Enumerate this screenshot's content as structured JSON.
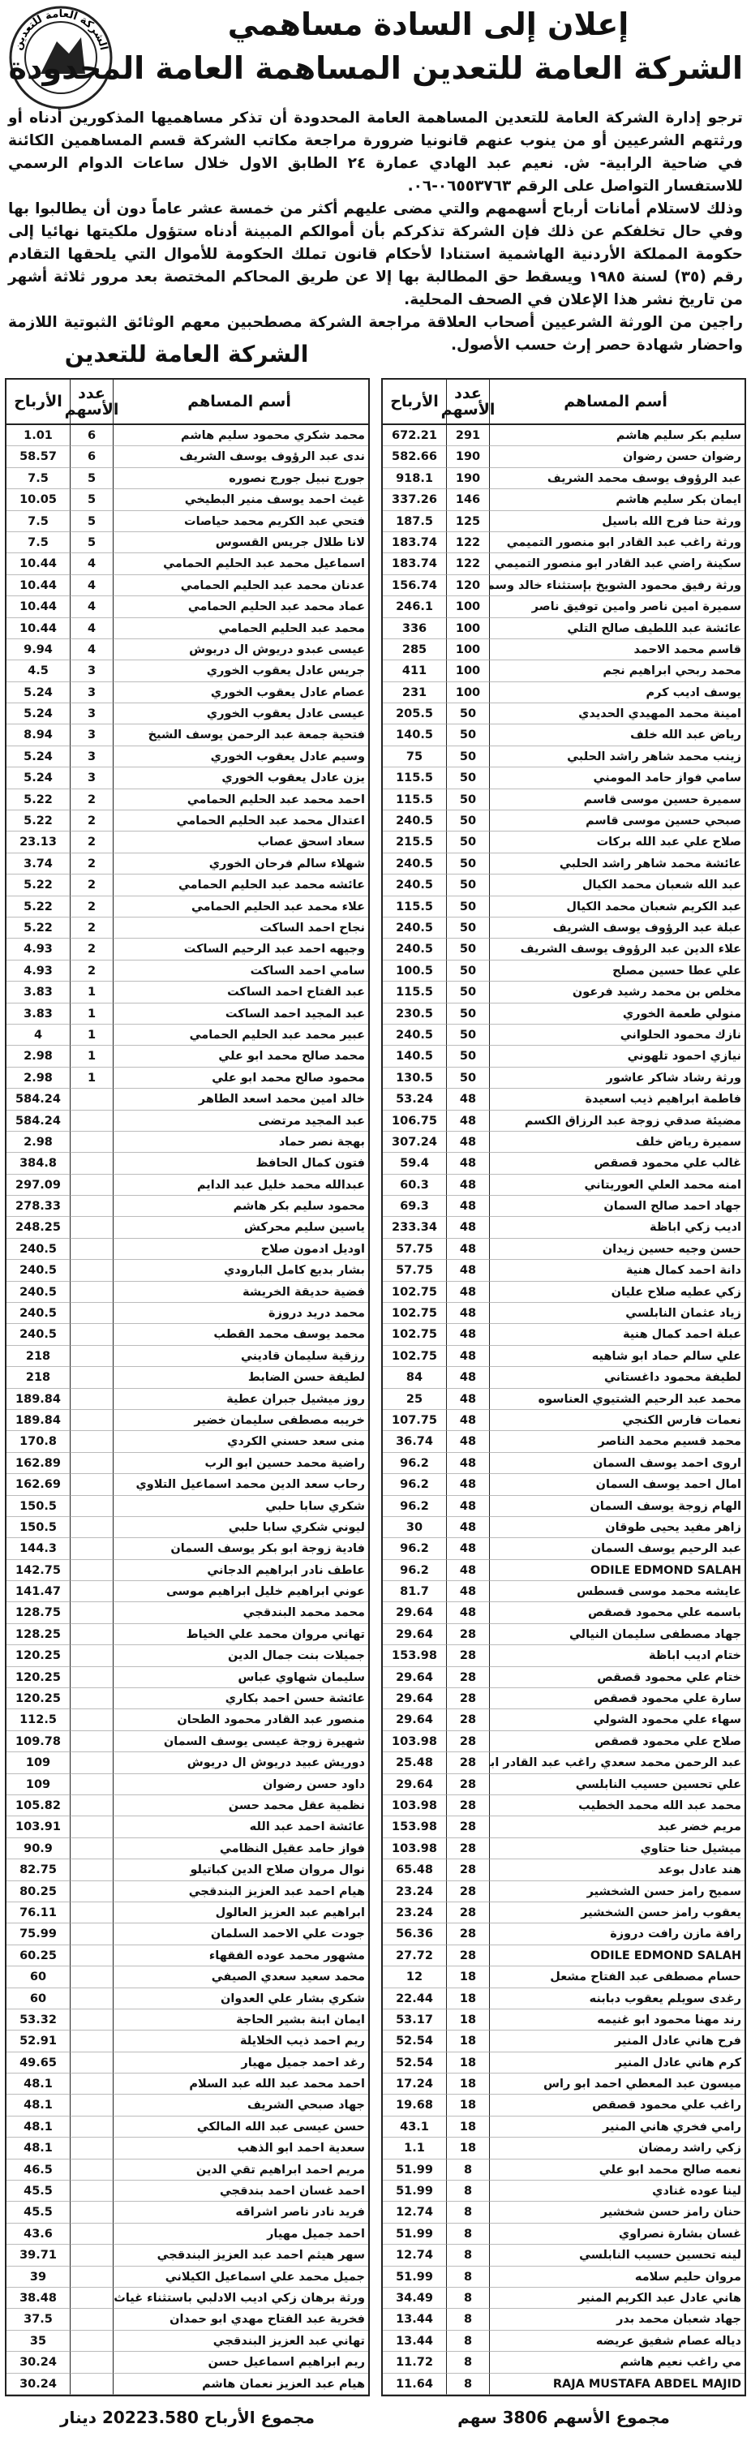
{
  "header": {
    "logo_text": "الشركة العامة للتعدين",
    "title_line1": "إعلان إلى السادة مساهمي",
    "title_line2": "الشركة العامة للتعدين المساهمة العامة المحدودة"
  },
  "body": {
    "paragraphs": [
      "ترجو إدارة الشركة العامة للتعدين المساهمة العامة المحدودة أن تذكر مساهميها المذكورين أدناه أو ورثتهم الشرعيين أو من ينوب عنهم قانونيا ضرورة مراجعة مكاتب الشركة قسم المساهمين الكائنة في ضاحية الرابية- ش. نعيم عبد الهادي عمارة ٢٤ الطابق الاول خلال ساعات الدوام الرسمي للاستفسار التواصل على الرقم ٠٦٥٥٣٧٦٣-٠٦.",
      "وذلك لاستلام أمانات أرباح أسهمهم والتي مضى عليهم أكثر من خمسة عشر عاماً دون أن يطالبوا بها وفي حال تخلفكم عن ذلك فإن الشركة تذكركم بأن أموالكم المبينة أدناه ستؤول ملكيتها نهائيا إلى حكومة المملكة الأردنية الهاشمية استنادا لأحكام قانون تملك الحكومة للأموال التي يلحقها التقادم رقم (٣٥) لسنة ١٩٨٥ ويسقط حق المطالبة بها إلا عن طريق المحاكم المختصة بعد مرور ثلاثة أشهر من تاريخ نشر هذا الإعلان في الصحف المحلية.",
      "راجين من الورثة الشرعيين أصحاب العلاقة مراجعة الشركة مصطحبين معهم الوثائق الثبوتية اللازمة واحضار شهادة حصر إرث حسب الأصول."
    ],
    "company": "الشركة العامة للتعدين"
  },
  "tables": [
    {
      "columns": [
        "أسم المساهم",
        "عدد الأسهم",
        "الأرباح"
      ],
      "rows": [
        [
          "سليم بكر سليم هاشم",
          "291",
          "672.21"
        ],
        [
          "رضوان حسن رضوان",
          "190",
          "582.66"
        ],
        [
          "عبد الرؤوف يوسف محمد الشريف",
          "190",
          "918.1"
        ],
        [
          "ايمان بكر سليم هاشم",
          "146",
          "337.26"
        ],
        [
          "ورثة حنا فرح الله باسيل",
          "125",
          "187.5"
        ],
        [
          "ورثة راغب عبد القادر ابو منصور التميمي",
          "122",
          "183.74"
        ],
        [
          "سكينة راضي عبد القادر ابو منصور التميمي",
          "122",
          "183.74"
        ],
        [
          "ورثة رفيق محمود الشويخ بإستثناء خالد وسمر ونور",
          "120",
          "156.74"
        ],
        [
          "سميرة امين ناصر وامين توفيق ناصر",
          "100",
          "246.1"
        ],
        [
          "عائشة عبد اللطيف صالح التلي",
          "100",
          "336"
        ],
        [
          "قاسم محمد الاحمد",
          "100",
          "285"
        ],
        [
          "محمد ربحي ابراهيم نجم",
          "100",
          "411"
        ],
        [
          "يوسف اديب كرم",
          "100",
          "231"
        ],
        [
          "امينة محمد المهيدي الحديدي",
          "50",
          "205.5"
        ],
        [
          "رياض عبد الله خلف",
          "50",
          "140.5"
        ],
        [
          "زينب محمد شاهر راشد الحلبي",
          "50",
          "75"
        ],
        [
          "سامي فواز حامد المومني",
          "50",
          "115.5"
        ],
        [
          "سميرة حسين موسى قاسم",
          "50",
          "115.5"
        ],
        [
          "صبحي حسين موسى قاسم",
          "50",
          "240.5"
        ],
        [
          "صلاح علي عبد الله بركات",
          "50",
          "215.5"
        ],
        [
          "عائشة محمد شاهر راشد الحلبي",
          "50",
          "240.5"
        ],
        [
          "عبد الله شعبان محمد الكيال",
          "50",
          "240.5"
        ],
        [
          "عبد الكريم شعبان محمد الكيال",
          "50",
          "115.5"
        ],
        [
          "عبلة عبد الرؤوف يوسف الشريف",
          "50",
          "240.5"
        ],
        [
          "علاء الدين عبد الرؤوف يوسف الشريف",
          "50",
          "240.5"
        ],
        [
          "علي عطا حسين مصلح",
          "50",
          "100.5"
        ],
        [
          "مخلص بن محمد رشيد فرعون",
          "50",
          "115.5"
        ],
        [
          "منولي طعمة الخوري",
          "50",
          "230.5"
        ],
        [
          "نازك محمود الحلواني",
          "50",
          "240.5"
        ],
        [
          "نيازي احمود تلهوني",
          "50",
          "140.5"
        ],
        [
          "ورثة رشاد شاكر عاشور",
          "50",
          "130.5"
        ],
        [
          "فاطمة ابراهيم ذيب اسعيدة",
          "48",
          "53.24"
        ],
        [
          "مضيئة صدقي زوجة عبد الرزاق الكسم",
          "48",
          "106.75"
        ],
        [
          "سميرة رياض خلف",
          "48",
          "307.24"
        ],
        [
          "غالب علي محمود قصقص",
          "48",
          "59.4"
        ],
        [
          "امنه محمد العلي العوريتاني",
          "48",
          "60.3"
        ],
        [
          "جهاد احمد صالح السمان",
          "48",
          "69.3"
        ],
        [
          "اديب زكي اباظة",
          "48",
          "233.34"
        ],
        [
          "حسن وجيه حسين زيدان",
          "48",
          "57.75"
        ],
        [
          "دانة احمد كمال هنية",
          "48",
          "57.75"
        ],
        [
          "زكي عطيه صلاح عليان",
          "48",
          "102.75"
        ],
        [
          "زياد عثمان النابلسي",
          "48",
          "102.75"
        ],
        [
          "عبلة احمد كمال هنية",
          "48",
          "102.75"
        ],
        [
          "علي سالم حماد ابو شاهيه",
          "48",
          "102.75"
        ],
        [
          "لطيفة محمود داغستاني",
          "48",
          "84"
        ],
        [
          "محمد عبد الرحيم الشتيوي العناسوه",
          "48",
          "25"
        ],
        [
          "نعمات فارس الكنجي",
          "48",
          "107.75"
        ],
        [
          "محمد قسيم محمد الناصر",
          "48",
          "36.74"
        ],
        [
          "اروى احمد يوسف السمان",
          "48",
          "96.2"
        ],
        [
          "امال احمد يوسف السمان",
          "48",
          "96.2"
        ],
        [
          "الهام زوجة يوسف السمان",
          "48",
          "96.2"
        ],
        [
          "زاهر مفيد يحيى طوقان",
          "48",
          "30"
        ],
        [
          "عبد الرحيم يوسف السمان",
          "48",
          "96.2"
        ],
        [
          "ODILE EDMOND SALAH",
          "48",
          "96.2"
        ],
        [
          "عايشه محمد موسى قسطس",
          "48",
          "81.7"
        ],
        [
          "باسمه علي محمود قصقص",
          "48",
          "29.64"
        ],
        [
          "جهاد مصطفى سليمان النيالي",
          "28",
          "29.64"
        ],
        [
          "ختام اديب اباظة",
          "28",
          "153.98"
        ],
        [
          "ختام علي محمود قصقص",
          "28",
          "29.64"
        ],
        [
          "سارة علي محمود قصقص",
          "28",
          "29.64"
        ],
        [
          "سهاء علي محمود الشولي",
          "28",
          "29.64"
        ],
        [
          "صلاح علي محمود قصقص",
          "28",
          "103.98"
        ],
        [
          "عبد الرحمن محمد سعدي راغب عبد القادر ابو منصور التميمي",
          "28",
          "25.48"
        ],
        [
          "علي تحسين حسيب النابلسي",
          "28",
          "29.64"
        ],
        [
          "محمد عبد الله محمد الخطيب",
          "28",
          "103.98"
        ],
        [
          "مريم خضر عبد",
          "28",
          "153.98"
        ],
        [
          "ميشيل حنا حتاوي",
          "28",
          "103.98"
        ],
        [
          "هند عادل بوعد",
          "28",
          "65.48"
        ],
        [
          "سميح رامز حسن الشخشير",
          "28",
          "23.24"
        ],
        [
          "يعقوب رامز حسن الشخشير",
          "28",
          "23.24"
        ],
        [
          "رافة مازن رافت دروزة",
          "28",
          "56.36"
        ],
        [
          "ODILE EDMOND SALAH",
          "28",
          "27.72"
        ],
        [
          "حسام مصطفى عبد الفتاح مشعل",
          "18",
          "12"
        ],
        [
          "رغدى سويلم يعقوب دبابنه",
          "18",
          "22.44"
        ],
        [
          "رند مهنا محمود ابو غنيمه",
          "18",
          "53.17"
        ],
        [
          "فرح هاني عادل المنير",
          "18",
          "52.54"
        ],
        [
          "كرم هاني عادل المنير",
          "18",
          "52.54"
        ],
        [
          "ميسون عبد المعطي احمد ابو راس",
          "18",
          "17.24"
        ],
        [
          "راغب علي محمود قصقص",
          "18",
          "19.68"
        ],
        [
          "رامي فخري هاني المنير",
          "18",
          "43.1"
        ],
        [
          "زكي راشد رمضان",
          "18",
          "1.1"
        ],
        [
          "نعمه صالح محمد ابو علي",
          "8",
          "51.99"
        ],
        [
          "لينا عوده غنادي",
          "8",
          "51.99"
        ],
        [
          "حنان رامز حسن شخشير",
          "8",
          "12.74"
        ],
        [
          "غسان بشارة نصراوي",
          "8",
          "51.99"
        ],
        [
          "لينه تحسين حسيب النابلسي",
          "8",
          "12.74"
        ],
        [
          "مروان حليم سلامه",
          "8",
          "51.99"
        ],
        [
          "هاني عادل عبد الكريم المنير",
          "8",
          "34.49"
        ],
        [
          "جهاد شعبان محمد بدر",
          "8",
          "13.44"
        ],
        [
          "دياله عصام شفيق عريضه",
          "8",
          "13.44"
        ],
        [
          "مي راغب نعيم هاشم",
          "8",
          "11.72"
        ],
        [
          "RAJA MUSTAFA ABDEL MAJID",
          "8",
          "11.64"
        ]
      ],
      "total": "مجموع الأسهم 3806 سهم"
    },
    {
      "columns": [
        "أسم المساهم",
        "عدد الأسهم",
        "الأرباح"
      ],
      "rows": [
        [
          "محمد شكري محمود سليم هاشم",
          "6",
          "1.01"
        ],
        [
          "ندى عبد الرؤوف يوسف الشريف",
          "6",
          "58.57"
        ],
        [
          "جورج نبيل جورج نصوره",
          "5",
          "7.5"
        ],
        [
          "غيث احمد يوسف منير البطيخي",
          "5",
          "10.05"
        ],
        [
          "فتحي عبد الكريم محمد حياصات",
          "5",
          "7.5"
        ],
        [
          "لانا طلال جريس القسوس",
          "5",
          "7.5"
        ],
        [
          "اسماعيل محمد عبد الحليم الحمامي",
          "4",
          "10.44"
        ],
        [
          "عدنان محمد عبد الحليم الحمامي",
          "4",
          "10.44"
        ],
        [
          "عماد محمد عبد الحليم الحمامي",
          "4",
          "10.44"
        ],
        [
          "محمد عبد الحليم الحمامي",
          "4",
          "10.44"
        ],
        [
          "عيسى عبدو دريوش ال دريوش",
          "4",
          "9.94"
        ],
        [
          "جريس عادل يعقوب الخوري",
          "3",
          "4.5"
        ],
        [
          "عصام عادل يعقوب الخوري",
          "3",
          "5.24"
        ],
        [
          "عيسى عادل يعقوب الخوري",
          "3",
          "5.24"
        ],
        [
          "فتحية جمعة عبد الرحمن يوسف الشيخ",
          "3",
          "8.94"
        ],
        [
          "وسيم عادل يعقوب الخوري",
          "3",
          "5.24"
        ],
        [
          "يزن عادل يعقوب الخوري",
          "3",
          "5.24"
        ],
        [
          "احمد محمد عبد الحليم الحمامي",
          "2",
          "5.22"
        ],
        [
          "اعتدال محمد عبد الحليم الحمامي",
          "2",
          "5.22"
        ],
        [
          "سعاد اسحق عصاب",
          "2",
          "23.13"
        ],
        [
          "شهلاء سالم فرحان الخوري",
          "2",
          "3.74"
        ],
        [
          "عائشه محمد عبد الحليم الحمامي",
          "2",
          "5.22"
        ],
        [
          "علاء محمد عبد الحليم الحمامي",
          "2",
          "5.22"
        ],
        [
          "نجاح احمد الساكت",
          "2",
          "5.22"
        ],
        [
          "وجيهه احمد عبد الرحيم الساكت",
          "2",
          "4.93"
        ],
        [
          "سامي احمد الساكت",
          "2",
          "4.93"
        ],
        [
          "عبد الفتاح احمد الساكت",
          "1",
          "3.83"
        ],
        [
          "عبد المجيد احمد الساكت",
          "1",
          "3.83"
        ],
        [
          "عبير محمد عبد الحليم الحمامي",
          "1",
          "4"
        ],
        [
          "محمد صالح محمد ابو علي",
          "1",
          "2.98"
        ],
        [
          "محمود صالح محمد ابو علي",
          "1",
          "2.98"
        ],
        [
          "خالد امين محمد اسعد الطاهر",
          null,
          "584.24"
        ],
        [
          "عبد المجيد مرتضى",
          null,
          "584.24"
        ],
        [
          "بهجة نصر حماد",
          null,
          "2.98"
        ],
        [
          "فتون كمال الحافظ",
          null,
          "384.8"
        ],
        [
          "عبدالله محمد خليل عبد الدايم",
          null,
          "297.09"
        ],
        [
          "محمود سليم بكر هاشم",
          null,
          "278.33"
        ],
        [
          "ياسين سليم محركش",
          null,
          "248.25"
        ],
        [
          "اوديل ادمون صلاح",
          null,
          "240.5"
        ],
        [
          "بشار بديع كامل البارودي",
          null,
          "240.5"
        ],
        [
          "فضية حديقة الخريشة",
          null,
          "240.5"
        ],
        [
          "محمد دريد دروزة",
          null,
          "240.5"
        ],
        [
          "محمد يوسف محمد القطب",
          null,
          "240.5"
        ],
        [
          "رزقية سليمان قاديني",
          null,
          "218"
        ],
        [
          "لطيفة حسن الضابط",
          null,
          "218"
        ],
        [
          "روز ميشيل جبران عطية",
          null,
          "189.84"
        ],
        [
          "خريبه مصطفى سليمان خضير",
          null,
          "189.84"
        ],
        [
          "منى سعد حسني الكردي",
          null,
          "170.8"
        ],
        [
          "راضية محمد حسين ابو الرب",
          null,
          "162.89"
        ],
        [
          "رحاب سعد الدين محمد اسماعيل التلاوي",
          null,
          "162.69"
        ],
        [
          "شكري سابا حلبي",
          null,
          "150.5"
        ],
        [
          "ليوني شكري سابا حلبي",
          null,
          "150.5"
        ],
        [
          "فادية زوجة ابو بكر يوسف السمان",
          null,
          "144.3"
        ],
        [
          "عاطف نادر ابراهيم الدجاني",
          null,
          "142.75"
        ],
        [
          "عوني ابراهيم خليل ابراهيم موسى",
          null,
          "141.47"
        ],
        [
          "محمد محمد البندقجي",
          null,
          "128.75"
        ],
        [
          "تهاني مروان محمد علي الخياط",
          null,
          "128.25"
        ],
        [
          "جميلات بنت جمال الدين",
          null,
          "120.25"
        ],
        [
          "سليمان شهاوي عباس",
          null,
          "120.25"
        ],
        [
          "عائشة حسن احمد بكاري",
          null,
          "120.25"
        ],
        [
          "منصور عبد القادر محمود الطحان",
          null,
          "112.5"
        ],
        [
          "شهيرة زوجة عيسى يوسف السمان",
          null,
          "109.78"
        ],
        [
          "دوريش عبيد دريوش ال دريوش",
          null,
          "109"
        ],
        [
          "داود حسن رضوان",
          null,
          "109"
        ],
        [
          "نظمية عقل محمد حسن",
          null,
          "105.82"
        ],
        [
          "عائشة احمد عبد الله",
          null,
          "103.91"
        ],
        [
          "فواز حامد عقيل النظامي",
          null,
          "90.9"
        ],
        [
          "نوال مروان صلاح الدين كباتيلو",
          null,
          "82.75"
        ],
        [
          "هيام احمد عبد العزيز البندقجي",
          null,
          "80.25"
        ],
        [
          "ابراهيم عبد العزيز العالول",
          null,
          "76.11"
        ],
        [
          "جودت علي الاحمد السلمان",
          null,
          "75.99"
        ],
        [
          "مشهور محمد عوده الفقهاء",
          null,
          "60.25"
        ],
        [
          "محمد سعيد سعدي الصيفي",
          null,
          "60"
        ],
        [
          "شكري بشار علي العدوان",
          null,
          "60"
        ],
        [
          "ايمان ابنة بشير الحاجة",
          null,
          "53.32"
        ],
        [
          "ريم احمد ذيب الخلايلة",
          null,
          "52.91"
        ],
        [
          "رغد احمد جميل مهيار",
          null,
          "49.65"
        ],
        [
          "احمد محمد عبد الله عبد السلام",
          null,
          "48.1"
        ],
        [
          "جهاد صبحي الشريف",
          null,
          "48.1"
        ],
        [
          "حسن عيسى عبد الله المالكي",
          null,
          "48.1"
        ],
        [
          "سعدية احمد ابو الذهب",
          null,
          "48.1"
        ],
        [
          "مريم احمد ابراهيم تقي الدين",
          null,
          "46.5"
        ],
        [
          "احمد غسان احمد بندقجي",
          null,
          "45.5"
        ],
        [
          "فريد نادر ناصر اشراقه",
          null,
          "45.5"
        ],
        [
          "احمد جميل مهيار",
          null,
          "43.6"
        ],
        [
          "سهر هيثم احمد عبد العزيز البندقجي",
          null,
          "39.71"
        ],
        [
          "جميل محمد علي اسماعيل الكيلاني",
          null,
          "39"
        ],
        [
          "ورثة برهان زكي اديب الادلبي باستثناء غياث",
          null,
          "38.48"
        ],
        [
          "فخرية عبد الفتاح مهدي ابو حمدان",
          null,
          "37.5"
        ],
        [
          "تهاني عبد العزيز البندقجي",
          null,
          "35"
        ],
        [
          "ريم ابراهيم اسماعيل حسن",
          null,
          "30.24"
        ],
        [
          "هيام عبد العزيز نعمان هاشم",
          null,
          "30.24"
        ]
      ],
      "total": "مجموع الأرباح 20223.580 دينار"
    }
  ]
}
